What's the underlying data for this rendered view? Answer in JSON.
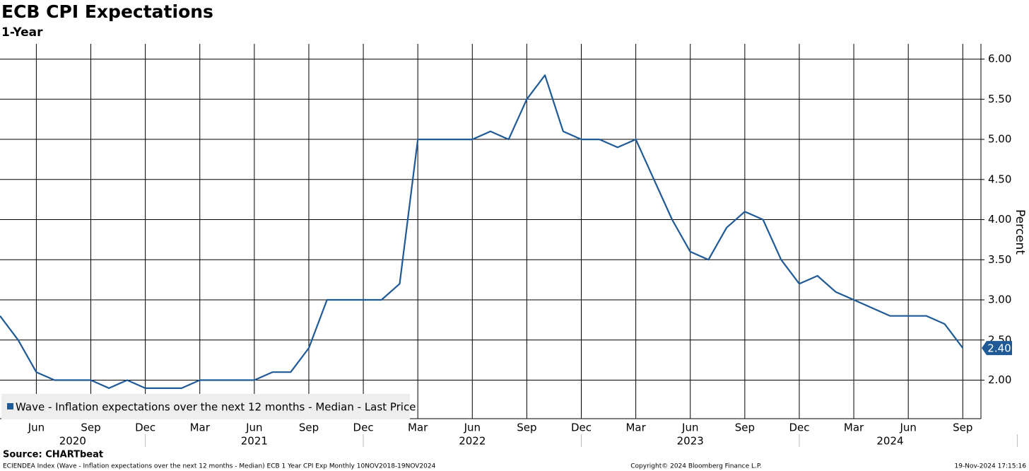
{
  "chart_data": {
    "type": "line",
    "title": "ECB CPI Expectations",
    "subtitle": "1-Year",
    "y_axis_label": "Percent",
    "x": [
      "2020-04",
      "2020-05",
      "2020-06",
      "2020-07",
      "2020-08",
      "2020-09",
      "2020-10",
      "2020-11",
      "2020-12",
      "2021-01",
      "2021-02",
      "2021-03",
      "2021-04",
      "2021-05",
      "2021-06",
      "2021-07",
      "2021-08",
      "2021-09",
      "2021-10",
      "2021-11",
      "2021-12",
      "2022-01",
      "2022-02",
      "2022-03",
      "2022-04",
      "2022-05",
      "2022-06",
      "2022-07",
      "2022-08",
      "2022-09",
      "2022-10",
      "2022-11",
      "2022-12",
      "2023-01",
      "2023-02",
      "2023-03",
      "2023-04",
      "2023-05",
      "2023-06",
      "2023-07",
      "2023-08",
      "2023-09",
      "2023-10",
      "2023-11",
      "2023-12",
      "2024-01",
      "2024-02",
      "2024-03",
      "2024-04",
      "2024-05",
      "2024-06",
      "2024-07",
      "2024-08",
      "2024-09"
    ],
    "series": [
      {
        "name": "Wave - Inflation expectations over the next 12 months - Median - Last Price",
        "color": "#1f5a96",
        "values": [
          2.8,
          2.5,
          2.1,
          2.0,
          2.0,
          2.0,
          1.9,
          2.0,
          1.9,
          1.9,
          1.9,
          2.0,
          2.0,
          2.0,
          2.0,
          2.1,
          2.1,
          2.4,
          3.0,
          3.0,
          3.0,
          3.0,
          3.2,
          5.0,
          5.0,
          5.0,
          5.0,
          5.1,
          5.0,
          5.5,
          5.8,
          5.1,
          5.0,
          5.0,
          4.9,
          5.0,
          4.5,
          4.0,
          3.6,
          3.5,
          3.9,
          4.1,
          4.0,
          3.5,
          3.2,
          3.3,
          3.1,
          3.0,
          2.9,
          2.8,
          2.8,
          2.8,
          2.7,
          2.4
        ]
      }
    ],
    "last_price_label": {
      "value": 2.4,
      "label": "2.40"
    },
    "xlim": [
      "2020-04",
      "2024-10"
    ],
    "xticks": [
      {
        "value": "2020-06",
        "label": "Jun"
      },
      {
        "value": "2020-09",
        "label": "Sep"
      },
      {
        "value": "2020-12",
        "label": "Dec"
      },
      {
        "value": "2021-03",
        "label": "Mar"
      },
      {
        "value": "2021-06",
        "label": "Jun"
      },
      {
        "value": "2021-09",
        "label": "Sep"
      },
      {
        "value": "2021-12",
        "label": "Dec"
      },
      {
        "value": "2022-03",
        "label": "Mar"
      },
      {
        "value": "2022-06",
        "label": "Jun"
      },
      {
        "value": "2022-09",
        "label": "Sep"
      },
      {
        "value": "2022-12",
        "label": "Dec"
      },
      {
        "value": "2023-03",
        "label": "Mar"
      },
      {
        "value": "2023-06",
        "label": "Jun"
      },
      {
        "value": "2023-09",
        "label": "Sep"
      },
      {
        "value": "2023-12",
        "label": "Dec"
      },
      {
        "value": "2024-03",
        "label": "Mar"
      },
      {
        "value": "2024-06",
        "label": "Jun"
      },
      {
        "value": "2024-09",
        "label": "Sep"
      }
    ],
    "years": [
      2020,
      2021,
      2022,
      2023,
      2024
    ],
    "ylim": [
      1.52,
      6.19
    ],
    "yticks": [
      {
        "value": 2,
        "label": "2.00"
      },
      {
        "value": 2.5,
        "label": "2.50"
      },
      {
        "value": 3,
        "label": "3.00"
      },
      {
        "value": 3.5,
        "label": "3.50"
      },
      {
        "value": 4,
        "label": "4.00"
      },
      {
        "value": 4.5,
        "label": "4.50"
      },
      {
        "value": 5,
        "label": "5.00"
      },
      {
        "value": 5.5,
        "label": "5.50"
      },
      {
        "value": 6,
        "label": "6.00"
      }
    ],
    "grid": true,
    "legend_position": "lower left",
    "source": "Source: CHARTbeat",
    "footer_left": "ECIENDEA Index (Wave - Inflation expectations over the next 12 months - Median) ECB 1 Year CPI Exp  Monthly 10NOV2018-19NOV2024",
    "footer_center": "Copyright© 2024 Bloomberg Finance L.P.",
    "footer_right": "19-Nov-2024 17:15:16"
  }
}
